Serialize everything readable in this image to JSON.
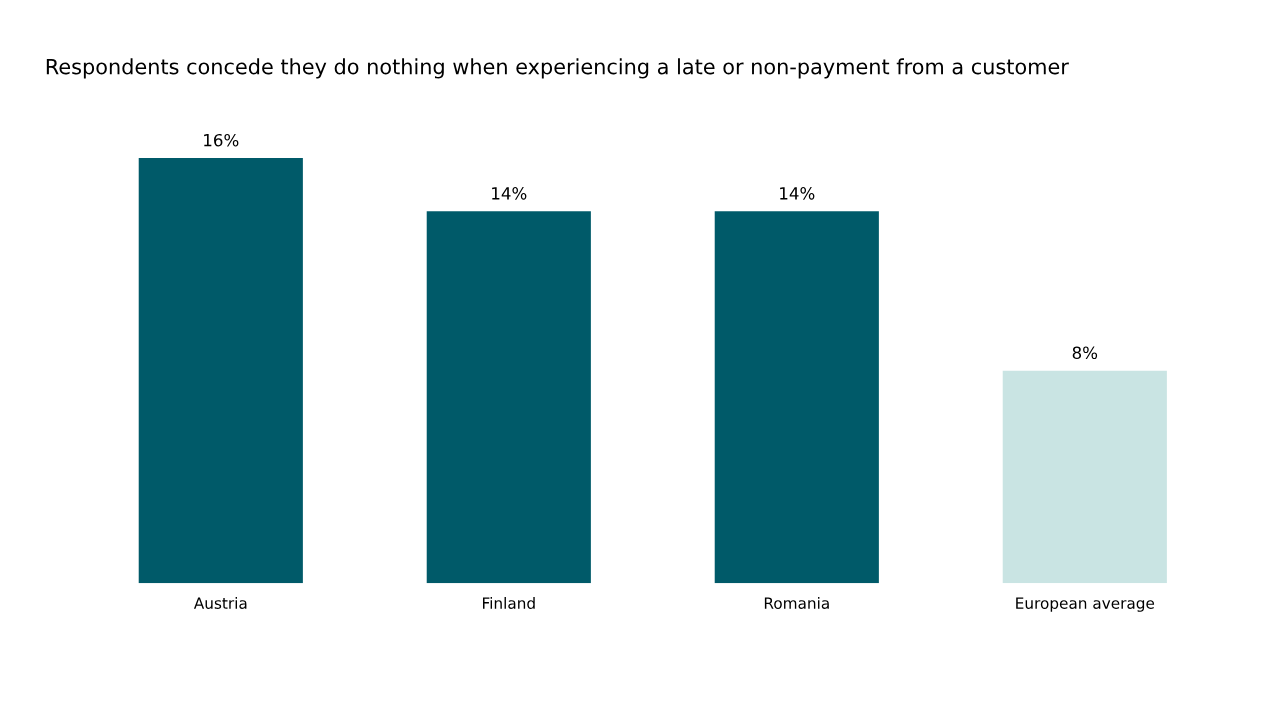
{
  "chart_data": {
    "type": "bar",
    "title": "Respondents concede they do nothing when experiencing a late or non-payment from a customer",
    "categories": [
      "Austria",
      "Finland",
      "Romania",
      "European average"
    ],
    "values": [
      16,
      14,
      14,
      8
    ],
    "colors": [
      "#005a69",
      "#005a69",
      "#005a69",
      "#c9e4e3"
    ],
    "data_labels": true,
    "value_labels": [
      "16%",
      "14%",
      "14%",
      "8%"
    ],
    "grid": false,
    "legend": false,
    "tick_labels": "x"
  }
}
